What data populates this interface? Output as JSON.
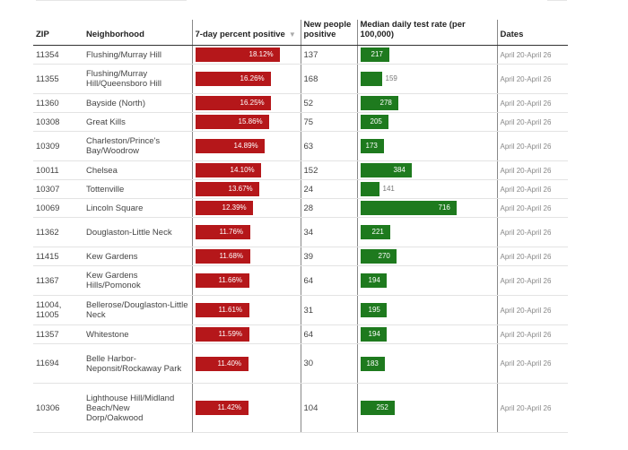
{
  "columns": {
    "zip": "ZIP",
    "neighborhood": "Neighborhood",
    "pct_positive": "7-day percent positive",
    "new_positive": "New people positive",
    "test_rate": "Median daily test rate (per 100,000)",
    "dates": "Dates"
  },
  "sort_icon": "triangle-down-icon",
  "colors": {
    "positive_bar": "#b5171a",
    "test_bar": "#1e7a1e"
  },
  "rows": [
    {
      "zip": "11354",
      "neighborhood": "Flushing/Murray Hill",
      "pct": 18.12,
      "pct_label": "18.12%",
      "new": "137",
      "rate": 217,
      "rate_label": "217",
      "dates": "April 20-April 26"
    },
    {
      "zip": "11355",
      "neighborhood": "Flushing/Murray Hill/Queensboro Hill",
      "pct": 16.26,
      "pct_label": "16.26%",
      "new": "168",
      "rate": 159,
      "rate_label": "159",
      "dates": "April 20-April 26"
    },
    {
      "zip": "11360",
      "neighborhood": "Bayside (North)",
      "pct": 16.25,
      "pct_label": "16.25%",
      "new": "52",
      "rate": 278,
      "rate_label": "278",
      "dates": "April 20-April 26"
    },
    {
      "zip": "10308",
      "neighborhood": "Great Kills",
      "pct": 15.86,
      "pct_label": "15.86%",
      "new": "75",
      "rate": 205,
      "rate_label": "205",
      "dates": "April 20-April 26"
    },
    {
      "zip": "10309",
      "neighborhood": "Charleston/Prince's Bay/Woodrow",
      "pct": 14.89,
      "pct_label": "14.89%",
      "new": "63",
      "rate": 173,
      "rate_label": "173",
      "dates": "April 20-April 26"
    },
    {
      "zip": "10011",
      "neighborhood": "Chelsea",
      "pct": 14.1,
      "pct_label": "14.10%",
      "new": "152",
      "rate": 384,
      "rate_label": "384",
      "dates": "April 20-April 26"
    },
    {
      "zip": "10307",
      "neighborhood": "Tottenville",
      "pct": 13.67,
      "pct_label": "13.67%",
      "new": "24",
      "rate": 141,
      "rate_label": "141",
      "dates": "April 20-April 26"
    },
    {
      "zip": "10069",
      "neighborhood": "Lincoln Square",
      "pct": 12.39,
      "pct_label": "12.39%",
      "new": "28",
      "rate": 716,
      "rate_label": "716",
      "dates": "April 20-April 26"
    },
    {
      "zip": "11362",
      "neighborhood": "Douglaston-Little Neck",
      "pct": 11.76,
      "pct_label": "11.76%",
      "new": "34",
      "rate": 221,
      "rate_label": "221",
      "dates": "April 20-April 26"
    },
    {
      "zip": "11415",
      "neighborhood": "Kew Gardens",
      "pct": 11.68,
      "pct_label": "11.68%",
      "new": "39",
      "rate": 270,
      "rate_label": "270",
      "dates": "April 20-April 26"
    },
    {
      "zip": "11367",
      "neighborhood": "Kew Gardens Hills/Pomonok",
      "pct": 11.66,
      "pct_label": "11.66%",
      "new": "64",
      "rate": 194,
      "rate_label": "194",
      "dates": "April 20-April 26"
    },
    {
      "zip": "11004, 11005",
      "neighborhood": "Bellerose/Douglaston-Little Neck",
      "pct": 11.61,
      "pct_label": "11.61%",
      "new": "31",
      "rate": 195,
      "rate_label": "195",
      "dates": "April 20-April 26"
    },
    {
      "zip": "11357",
      "neighborhood": "Whitestone",
      "pct": 11.59,
      "pct_label": "11.59%",
      "new": "64",
      "rate": 194,
      "rate_label": "194",
      "dates": "April 20-April 26"
    },
    {
      "zip": "11694",
      "neighborhood": "Belle Harbor-Neponsit/Rockaway Park",
      "pct": 11.4,
      "pct_label": "11.40%",
      "new": "30",
      "rate": 183,
      "rate_label": "183",
      "dates": "April 20-April 26"
    },
    {
      "zip": "10306",
      "neighborhood": "Lighthouse Hill/Midland Beach/New Dorp/Oakwood",
      "pct": 11.42,
      "pct_label": "11.42%",
      "new": "104",
      "rate": 252,
      "rate_label": "252",
      "dates": "April 20-April 26"
    }
  ],
  "chart_data": {
    "type": "table",
    "columns": [
      "ZIP",
      "Neighborhood",
      "7-day percent positive",
      "New people positive",
      "Median daily test rate (per 100,000)",
      "Dates"
    ],
    "series": [
      {
        "name": "7-day percent positive",
        "values": [
          18.12,
          16.26,
          16.25,
          15.86,
          14.89,
          14.1,
          13.67,
          12.39,
          11.76,
          11.68,
          11.66,
          11.61,
          11.59,
          11.4,
          11.42
        ]
      },
      {
        "name": "New people positive",
        "values": [
          137,
          168,
          52,
          75,
          63,
          152,
          24,
          28,
          34,
          39,
          64,
          31,
          64,
          30,
          104
        ]
      },
      {
        "name": "Median daily test rate (per 100,000)",
        "values": [
          217,
          159,
          278,
          205,
          173,
          384,
          141,
          716,
          221,
          270,
          194,
          195,
          194,
          183,
          252
        ]
      }
    ],
    "categories": [
      "11354",
      "11355",
      "11360",
      "10308",
      "10309",
      "10011",
      "10307",
      "10069",
      "11362",
      "11415",
      "11367",
      "11004, 11005",
      "11357",
      "11694",
      "10306"
    ]
  }
}
